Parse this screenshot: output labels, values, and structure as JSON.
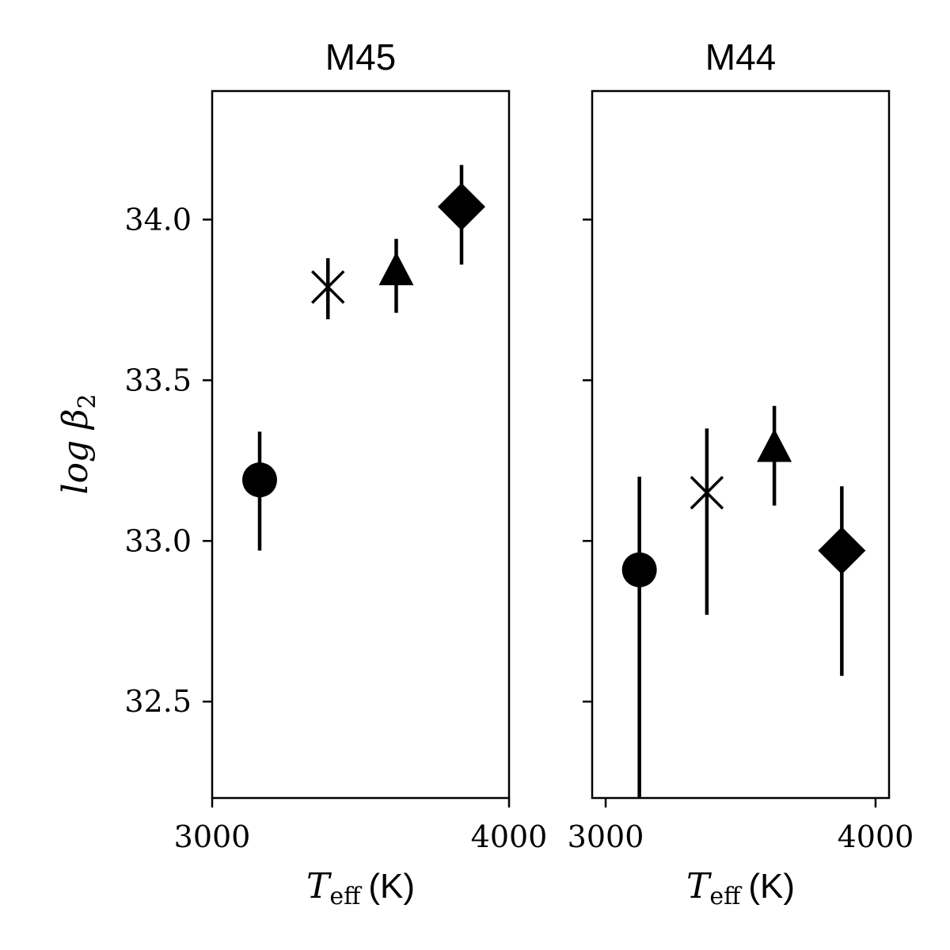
{
  "chart_data": [
    {
      "type": "scatter",
      "title": "M45",
      "xlabel": "T_eff (K)",
      "xlabel_symbol": "T",
      "xlabel_subscript": "eff",
      "xlabel_unit": "(K)",
      "ylabel": "log β2",
      "ylabel_func": "log",
      "ylabel_symbol": "β",
      "ylabel_subscript": "2",
      "xlim": [
        3000,
        4000
      ],
      "ylim": [
        32.2,
        34.4
      ],
      "xticks": [
        3000,
        4000
      ],
      "yticks": [
        32.5,
        33.0,
        33.5,
        34.0
      ],
      "ytick_labels": [
        "32.5",
        "33.0",
        "33.5",
        "34.0"
      ],
      "xtick_labels": [
        "3000",
        "4000"
      ],
      "points": [
        {
          "x": 3160,
          "y": 33.19,
          "yerr_low": 32.97,
          "yerr_high": 33.34,
          "marker": "circle"
        },
        {
          "x": 3390,
          "y": 33.79,
          "yerr_low": 33.69,
          "yerr_high": 33.88,
          "marker": "x"
        },
        {
          "x": 3620,
          "y": 33.84,
          "yerr_low": 33.71,
          "yerr_high": 33.94,
          "marker": "triangle"
        },
        {
          "x": 3840,
          "y": 34.04,
          "yerr_low": 33.86,
          "yerr_high": 34.17,
          "marker": "diamond"
        }
      ],
      "grid": false
    },
    {
      "type": "scatter",
      "title": "M44",
      "xlabel": "T_eff (K)",
      "xlabel_symbol": "T",
      "xlabel_subscript": "eff",
      "xlabel_unit": "(K)",
      "xlim": [
        2950,
        4050
      ],
      "ylim": [
        32.2,
        34.4
      ],
      "xticks": [
        3000,
        4000
      ],
      "xtick_labels": [
        "3000",
        "4000"
      ],
      "yticks": [
        32.5,
        33.0,
        33.5,
        34.0
      ],
      "points": [
        {
          "x": 3125,
          "y": 32.91,
          "yerr_low": 32.2,
          "yerr_high": 33.2,
          "marker": "circle"
        },
        {
          "x": 3375,
          "y": 33.15,
          "yerr_low": 32.77,
          "yerr_high": 33.35,
          "marker": "x"
        },
        {
          "x": 3625,
          "y": 33.29,
          "yerr_low": 33.11,
          "yerr_high": 33.42,
          "marker": "triangle"
        },
        {
          "x": 3875,
          "y": 32.97,
          "yerr_low": 32.58,
          "yerr_high": 33.17,
          "marker": "diamond"
        }
      ],
      "grid": false
    }
  ]
}
